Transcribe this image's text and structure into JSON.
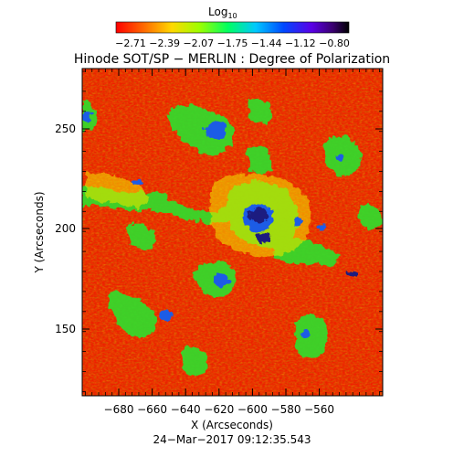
{
  "colorbar": {
    "label": "Log",
    "label_subscript": "10",
    "tick_labels": [
      "−2.71",
      "−2.39",
      "−2.07",
      "−1.75",
      "−1.44",
      "−1.12",
      "−0.80"
    ]
  },
  "title": "Hinode SOT/SP − MERLIN : Degree of Polarization",
  "xaxis": {
    "label": "X (Arcseconds)",
    "ticks": [
      "−680",
      "−660",
      "−640",
      "−620",
      "−600",
      "−580",
      "−560"
    ]
  },
  "yaxis": {
    "label": "Y (Arcseconds)",
    "ticks": [
      "150",
      "200",
      "250"
    ]
  },
  "timestamp": "24−Mar−2017 09:12:35.543",
  "colors": {
    "background_red": "#ee1f00",
    "orange": "#ff7a00",
    "yellow": "#f2e600",
    "green": "#2fe02c",
    "blue": "#1d5ce6",
    "navy": "#1b1a80"
  }
}
